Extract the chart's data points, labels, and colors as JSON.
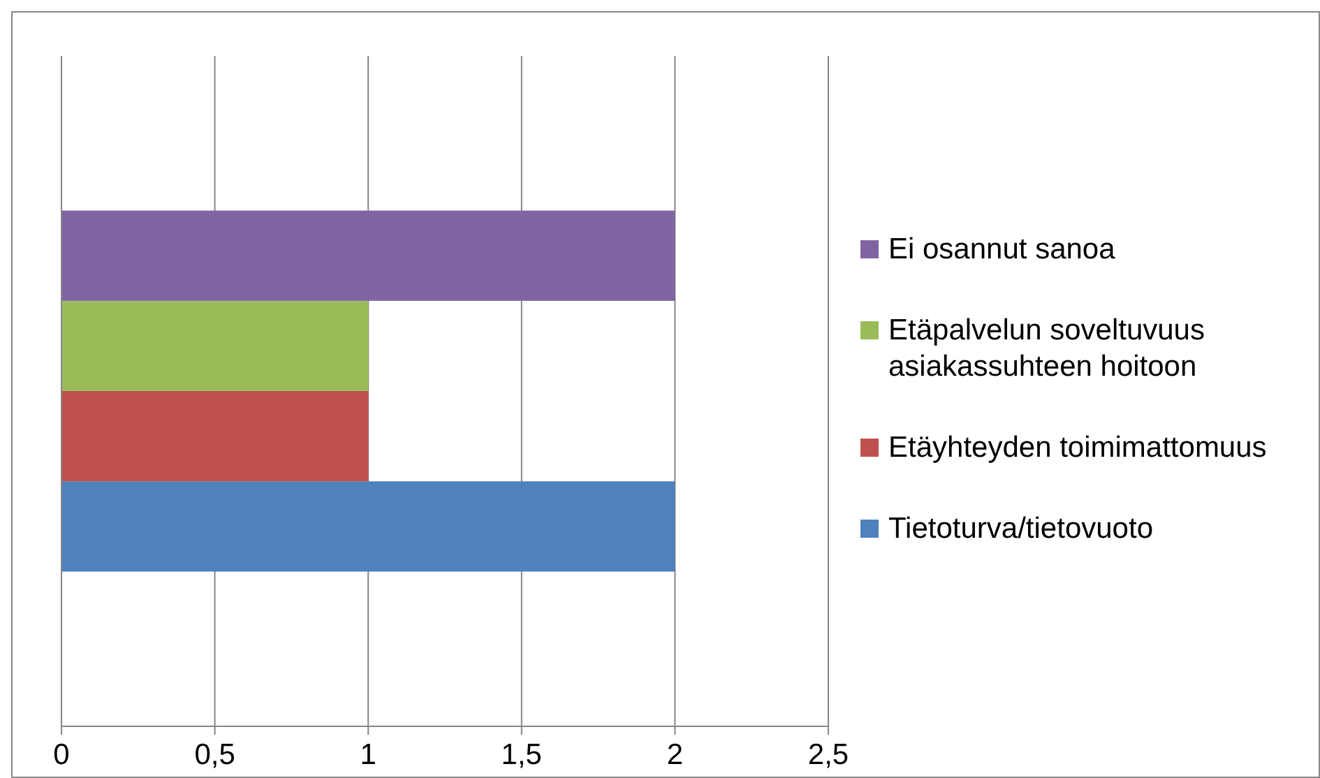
{
  "chart_data": {
    "type": "bar",
    "orientation": "horizontal",
    "categories": [
      null
    ],
    "series": [
      {
        "name": "Tietoturva/tietovuoto",
        "color": "#4f81bd",
        "values": [
          2
        ]
      },
      {
        "name": "Etäyhteyden toimimattomuus",
        "color": "#c0504d",
        "values": [
          1
        ]
      },
      {
        "name": "Etäpalvelun soveltuvuus asiakassuhteen hoitoon",
        "color": "#9bbb59",
        "values": [
          1
        ]
      },
      {
        "name": "Ei osannut sanoa",
        "color": "#8064a2",
        "values": [
          2
        ]
      }
    ],
    "xlim": [
      0,
      2.5
    ],
    "xticks": [
      0,
      {
        "value": 0.5,
        "label": "0,5"
      },
      1,
      {
        "value": 1.5,
        "label": "1,5"
      },
      2,
      {
        "value": 2.5,
        "label": "2,5"
      }
    ],
    "grid": "x",
    "legend": "right"
  }
}
